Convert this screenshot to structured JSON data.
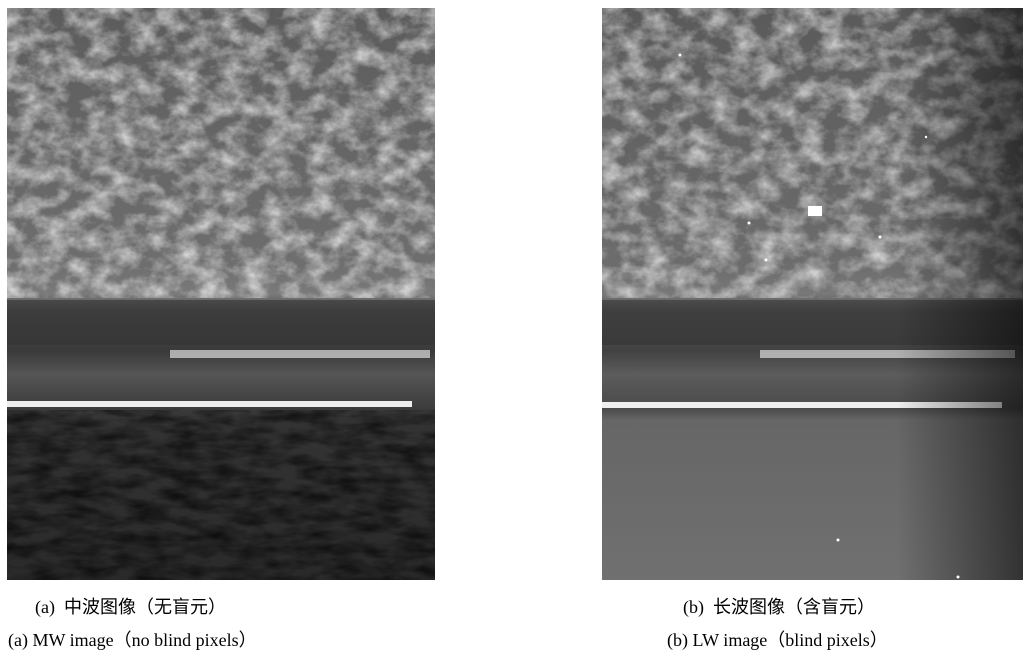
{
  "figures": [
    {
      "caption_zh": "(a)  中波图像（无盲元）",
      "caption_en": "(a) MW image（no blind pixels）"
    },
    {
      "caption_zh": "(b)  长波图像（含盲元）",
      "caption_en": "(b) LW image（blind pixels）"
    }
  ]
}
